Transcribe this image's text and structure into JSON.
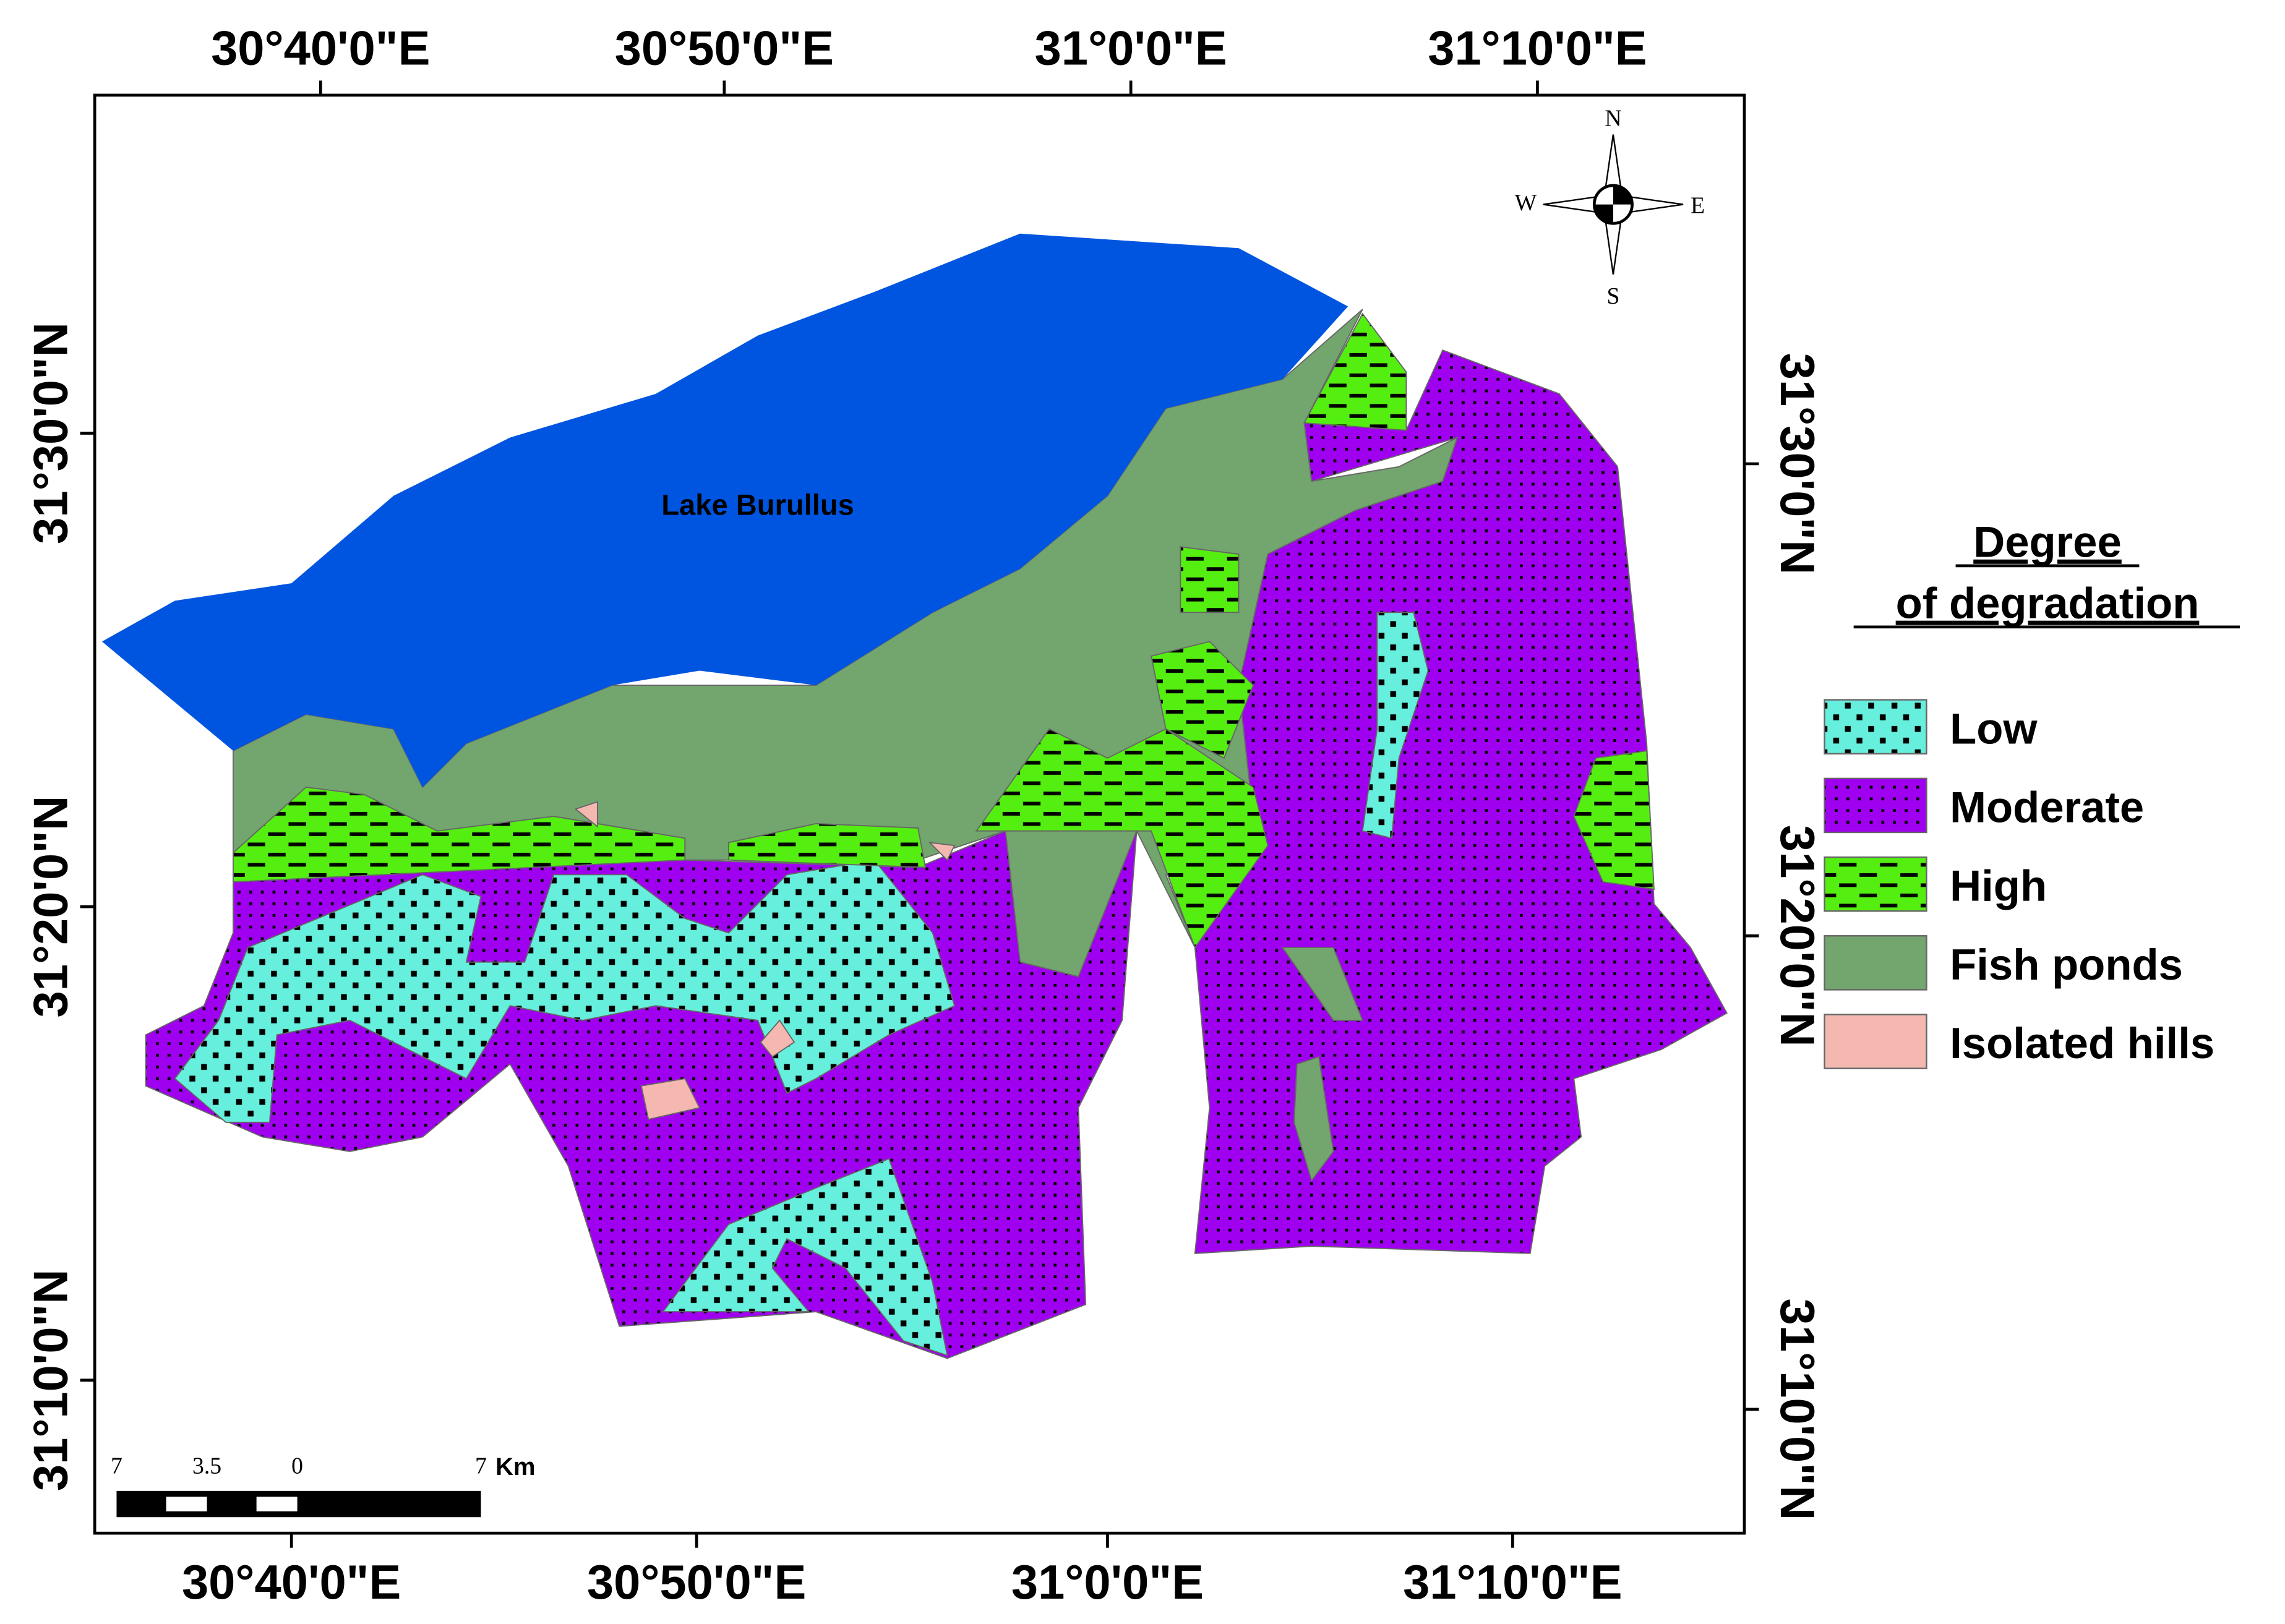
{
  "map": {
    "top_labels": [
      "30°40'0\"E",
      "30°50'0\"E",
      "31°0'0\"E",
      "31°10'0\"E"
    ],
    "bottom_labels": [
      "30°40'0\"E",
      "30°50'0\"E",
      "31°0'0\"E",
      "31°10'0\"E"
    ],
    "left_labels": [
      "31°30'0\"N",
      "31°20'0\"N",
      "31°10'0\"N"
    ],
    "right_labels": [
      "31°30'0\"N",
      "31°20'0\"N",
      "31°10'0\"N"
    ],
    "lake_label": "Lake Burullus",
    "compass": {
      "n": "N",
      "s": "S",
      "e": "E",
      "w": "W"
    },
    "scale_bar": [
      "7",
      "3.5",
      "0",
      "7",
      "Km"
    ]
  },
  "legend": {
    "title": [
      "Degree",
      "of degradation"
    ],
    "items": [
      "Low",
      "Moderate",
      "High",
      "Fish ponds",
      "Isolated hills"
    ]
  }
}
